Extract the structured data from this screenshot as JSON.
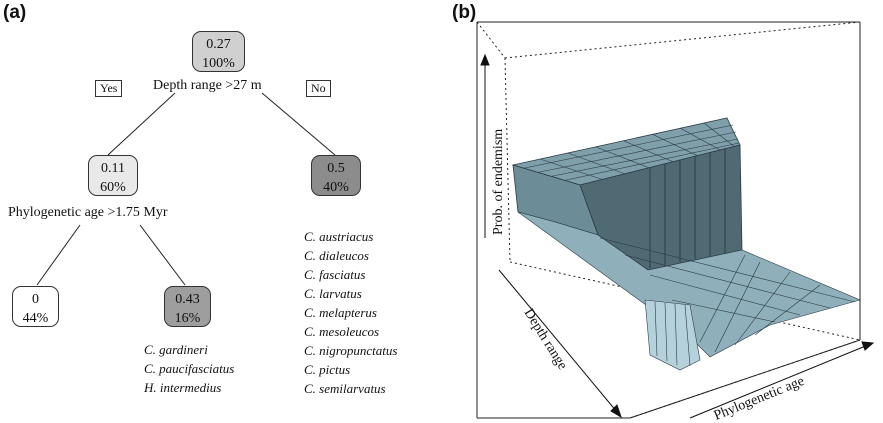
{
  "panel_a": {
    "label": "(a)",
    "root": {
      "value": "0.27",
      "pct": "100%"
    },
    "root_split": "Depth range >27 m",
    "yes_label": "Yes",
    "no_label": "No",
    "left_node": {
      "value": "0.11",
      "pct": "60%"
    },
    "left_split": "Phylogenetic age >1.75 Myr",
    "right_node": {
      "value": "0.5",
      "pct": "40%"
    },
    "leaf_left": {
      "value": "0",
      "pct": "44%"
    },
    "leaf_right": {
      "value": "0.43",
      "pct": "16%"
    },
    "species_leaf_right": [
      "C. gardineri",
      "C. paucifasciatus",
      "H. intermedius"
    ],
    "species_right_node": [
      "C. austriacus",
      "C. dialeucos",
      "C. fasciatus",
      "C. larvatus",
      "C. melapterus",
      "C. mesoleucos",
      "C. nigropunctatus",
      "C. pictus",
      "C. semilarvatus"
    ]
  },
  "panel_b": {
    "label": "(b)",
    "zlabel": "Prob. of endemism",
    "xlabel": "Depth range",
    "ylabel": "Phylogenetic age",
    "surface_color": "#7f9faa"
  }
}
